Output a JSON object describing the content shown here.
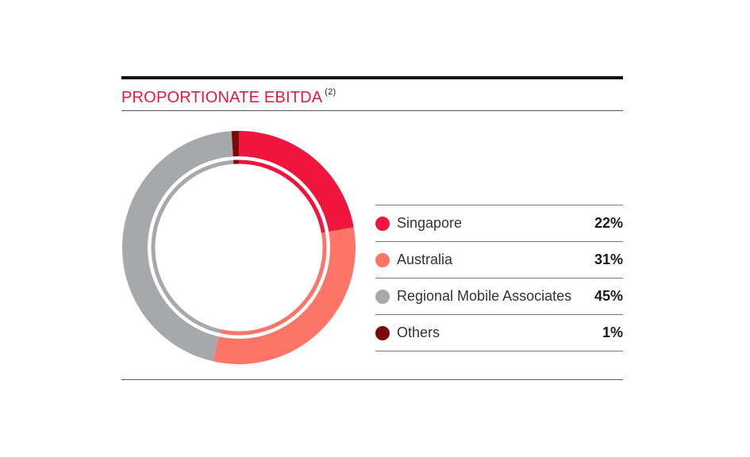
{
  "chart_data": {
    "type": "pie",
    "title": "PROPORTIONATE EBITDA",
    "title_note": "(2)",
    "categories": [
      "Singapore",
      "Australia",
      "Regional Mobile Associates",
      "Others"
    ],
    "values": [
      22,
      31,
      45,
      1
    ],
    "value_labels": [
      "22%",
      "31%",
      "45%",
      "1%"
    ],
    "colors": [
      "#f0153c",
      "#fe7466",
      "#a7a8ab",
      "#7a0a0a"
    ],
    "legend_position": "right"
  }
}
